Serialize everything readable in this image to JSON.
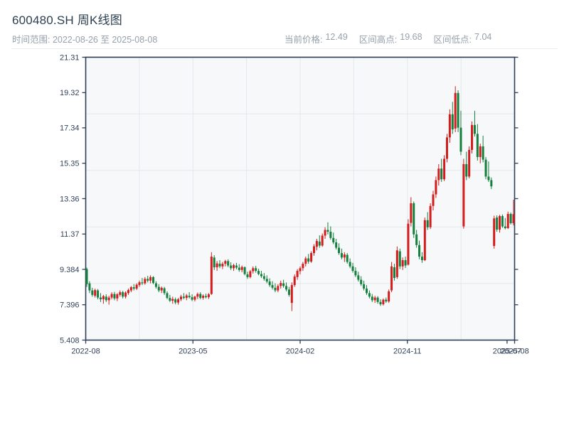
{
  "header": {
    "title": "600480.SH 周K线图",
    "subtitle": "时间范围: 2022-08-26 至 2025-08-08",
    "stats": [
      {
        "label": "当前价格:",
        "value": "12.49"
      },
      {
        "label": "区间高点:",
        "value": "19.68"
      },
      {
        "label": "区间低点:",
        "value": "7.04"
      }
    ]
  },
  "chart_data": {
    "type": "candlestick",
    "title": "600480.SH 周K线图",
    "symbol": "600480.SH",
    "period": "weekly",
    "date_range": [
      "2022-08-26",
      "2025-08-08"
    ],
    "current_price": 12.49,
    "range_high": 19.68,
    "range_low": 7.04,
    "ylim": [
      5.408,
      21.31
    ],
    "y_ticks": [
      "21.31",
      "19.32",
      "17.34",
      "15.35",
      "13.36",
      "11.37",
      "9.384",
      "7.396",
      "5.408"
    ],
    "x_ticks": [
      {
        "label": "2022-08",
        "week": 0
      },
      {
        "label": "2023-05",
        "week": 38.5
      },
      {
        "label": "2024-02",
        "week": 77
      },
      {
        "label": "2024-11",
        "week": 115.5
      },
      {
        "label": "2025-07",
        "week": 151.3
      },
      {
        "label": "2025-08",
        "week": 154
      }
    ],
    "grid": {
      "h_divisions": 5,
      "v_divisions": 8,
      "grid_on": true
    },
    "colors": {
      "up": "#d41c1c",
      "down": "#15803d",
      "axis": "#2e4057",
      "gridline": "#e4e7eb",
      "plot_bg": "#f7f8fa",
      "tick_label": "#33435a"
    },
    "candles_format": [
      "open",
      "high",
      "low",
      "close"
    ],
    "candles": [
      [
        9.4,
        9.48,
        8.4,
        8.55
      ],
      [
        8.6,
        8.72,
        8.05,
        8.2
      ],
      [
        8.2,
        8.35,
        7.85,
        7.95
      ],
      [
        7.9,
        8.3,
        7.8,
        8.22
      ],
      [
        8.2,
        8.28,
        7.7,
        7.8
      ],
      [
        7.8,
        8.05,
        7.55,
        7.7
      ],
      [
        7.7,
        7.95,
        7.45,
        7.88
      ],
      [
        7.85,
        7.98,
        7.55,
        7.65
      ],
      [
        7.65,
        7.9,
        7.4,
        7.8
      ],
      [
        7.8,
        8.1,
        7.7,
        8.0
      ],
      [
        8.0,
        8.12,
        7.65,
        7.75
      ],
      [
        7.75,
        8.05,
        7.6,
        7.98
      ],
      [
        7.95,
        8.2,
        7.85,
        8.1
      ],
      [
        8.1,
        8.18,
        7.75,
        7.85
      ],
      [
        7.85,
        8.15,
        7.75,
        8.08
      ],
      [
        8.05,
        8.3,
        7.95,
        8.22
      ],
      [
        8.2,
        8.45,
        8.1,
        8.38
      ],
      [
        8.38,
        8.55,
        8.2,
        8.3
      ],
      [
        8.3,
        8.6,
        8.22,
        8.52
      ],
      [
        8.5,
        8.75,
        8.4,
        8.66
      ],
      [
        8.65,
        8.9,
        8.5,
        8.6
      ],
      [
        8.6,
        8.95,
        8.52,
        8.85
      ],
      [
        8.85,
        9.02,
        8.65,
        8.75
      ],
      [
        8.75,
        9.05,
        8.6,
        8.95
      ],
      [
        8.95,
        9.0,
        8.55,
        8.62
      ],
      [
        8.6,
        8.72,
        8.3,
        8.4
      ],
      [
        8.4,
        8.55,
        8.1,
        8.2
      ],
      [
        8.2,
        8.42,
        8.05,
        8.35
      ],
      [
        8.32,
        8.4,
        7.95,
        8.05
      ],
      [
        8.05,
        8.15,
        7.7,
        7.78
      ],
      [
        7.78,
        7.95,
        7.55,
        7.62
      ],
      [
        7.62,
        7.85,
        7.45,
        7.72
      ],
      [
        7.7,
        7.8,
        7.42,
        7.52
      ],
      [
        7.52,
        7.78,
        7.4,
        7.7
      ],
      [
        7.7,
        7.95,
        7.6,
        7.85
      ],
      [
        7.85,
        8.05,
        7.7,
        7.78
      ],
      [
        7.78,
        8.0,
        7.65,
        7.92
      ],
      [
        7.9,
        8.1,
        7.75,
        7.82
      ],
      [
        7.82,
        7.98,
        7.6,
        7.68
      ],
      [
        7.68,
        7.9,
        7.58,
        7.85
      ],
      [
        7.85,
        8.08,
        7.72,
        8.0
      ],
      [
        8.0,
        8.1,
        7.7,
        7.78
      ],
      [
        7.78,
        7.98,
        7.68,
        7.9
      ],
      [
        7.88,
        8.02,
        7.75,
        7.82
      ],
      [
        7.82,
        8.05,
        7.72,
        7.98
      ],
      [
        8.0,
        10.35,
        7.95,
        10.1
      ],
      [
        10.05,
        10.18,
        9.35,
        9.5
      ],
      [
        9.5,
        9.85,
        9.3,
        9.72
      ],
      [
        9.7,
        9.9,
        9.45,
        9.55
      ],
      [
        9.55,
        9.8,
        9.4,
        9.7
      ],
      [
        9.7,
        9.92,
        9.55,
        9.85
      ],
      [
        9.85,
        9.95,
        9.5,
        9.6
      ],
      [
        9.6,
        9.78,
        9.35,
        9.45
      ],
      [
        9.45,
        9.7,
        9.3,
        9.62
      ],
      [
        9.6,
        9.75,
        9.38,
        9.48
      ],
      [
        9.48,
        9.68,
        9.25,
        9.35
      ],
      [
        9.35,
        9.6,
        9.22,
        9.52
      ],
      [
        9.5,
        9.55,
        9.05,
        9.12
      ],
      [
        9.1,
        9.25,
        8.85,
        8.95
      ],
      [
        8.95,
        9.35,
        8.88,
        9.28
      ],
      [
        9.28,
        9.55,
        9.15,
        9.45
      ],
      [
        9.45,
        9.58,
        9.2,
        9.3
      ],
      [
        9.3,
        9.42,
        9.05,
        9.12
      ],
      [
        9.12,
        9.3,
        8.9,
        9.0
      ],
      [
        9.0,
        9.18,
        8.75,
        8.85
      ],
      [
        8.85,
        9.05,
        8.6,
        8.7
      ],
      [
        8.7,
        8.88,
        8.4,
        8.5
      ],
      [
        8.5,
        8.72,
        8.25,
        8.35
      ],
      [
        8.35,
        8.6,
        8.1,
        8.2
      ],
      [
        8.2,
        8.55,
        8.1,
        8.45
      ],
      [
        8.45,
        8.75,
        8.3,
        8.62
      ],
      [
        8.6,
        8.8,
        8.35,
        8.45
      ],
      [
        8.45,
        8.65,
        8.15,
        8.25
      ],
      [
        8.25,
        8.4,
        7.85,
        7.95
      ],
      [
        7.5,
        8.65,
        7.04,
        8.5
      ],
      [
        8.5,
        9.1,
        8.4,
        8.98
      ],
      [
        8.95,
        9.4,
        8.8,
        9.3
      ],
      [
        9.28,
        9.55,
        9.1,
        9.45
      ],
      [
        9.45,
        9.8,
        9.3,
        9.7
      ],
      [
        9.7,
        10.1,
        9.55,
        10.0
      ],
      [
        10.0,
        10.25,
        9.7,
        9.82
      ],
      [
        9.82,
        10.4,
        9.75,
        10.3
      ],
      [
        10.3,
        10.8,
        10.15,
        10.68
      ],
      [
        10.65,
        11.1,
        10.45,
        10.98
      ],
      [
        10.95,
        11.3,
        10.6,
        10.72
      ],
      [
        10.72,
        11.4,
        10.65,
        11.28
      ],
      [
        11.28,
        11.75,
        11.1,
        11.6
      ],
      [
        11.6,
        12.03,
        11.35,
        11.5
      ],
      [
        11.5,
        11.8,
        11.05,
        11.15
      ],
      [
        11.15,
        11.45,
        10.8,
        10.9
      ],
      [
        10.9,
        11.1,
        10.5,
        10.6
      ],
      [
        10.6,
        10.85,
        10.2,
        10.3
      ],
      [
        10.3,
        10.55,
        9.95,
        10.05
      ],
      [
        10.05,
        10.35,
        9.8,
        10.22
      ],
      [
        10.2,
        10.3,
        9.7,
        9.8
      ],
      [
        9.8,
        10.0,
        9.45,
        9.55
      ],
      [
        9.55,
        9.75,
        9.2,
        9.3
      ],
      [
        9.3,
        9.5,
        8.95,
        9.05
      ],
      [
        9.05,
        9.25,
        8.7,
        8.8
      ],
      [
        8.8,
        9.0,
        8.45,
        8.55
      ],
      [
        8.55,
        8.75,
        8.2,
        8.3
      ],
      [
        8.3,
        8.5,
        7.95,
        8.05
      ],
      [
        8.05,
        8.2,
        7.75,
        7.85
      ],
      [
        7.85,
        8.0,
        7.55,
        7.65
      ],
      [
        7.65,
        7.9,
        7.5,
        7.8
      ],
      [
        7.8,
        7.88,
        7.45,
        7.55
      ],
      [
        7.55,
        7.7,
        7.33,
        7.42
      ],
      [
        7.42,
        7.75,
        7.35,
        7.68
      ],
      [
        7.68,
        7.8,
        7.5,
        7.58
      ],
      [
        7.58,
        8.25,
        7.5,
        8.15
      ],
      [
        8.2,
        9.8,
        8.1,
        9.55
      ],
      [
        9.5,
        9.7,
        8.75,
        8.9
      ],
      [
        8.95,
        10.67,
        8.85,
        10.45
      ],
      [
        10.4,
        10.55,
        9.4,
        9.55
      ],
      [
        9.55,
        10.05,
        9.35,
        9.9
      ],
      [
        9.9,
        10.1,
        9.46,
        9.6
      ],
      [
        9.65,
        12.2,
        9.6,
        11.95
      ],
      [
        12.0,
        13.44,
        11.8,
        13.1
      ],
      [
        13.1,
        13.2,
        11.15,
        11.35
      ],
      [
        11.35,
        11.6,
        10.6,
        10.75
      ],
      [
        10.75,
        11.0,
        9.95,
        10.1
      ],
      [
        10.1,
        10.35,
        9.75,
        9.9
      ],
      [
        9.9,
        12.3,
        9.85,
        12.15
      ],
      [
        12.15,
        12.6,
        11.6,
        11.75
      ],
      [
        11.75,
        13.1,
        11.65,
        12.95
      ],
      [
        12.95,
        13.8,
        12.7,
        13.6
      ],
      [
        13.6,
        14.6,
        13.4,
        14.4
      ],
      [
        14.4,
        15.3,
        14.1,
        15.05
      ],
      [
        15.05,
        15.6,
        14.3,
        14.45
      ],
      [
        14.45,
        15.8,
        14.35,
        15.6
      ],
      [
        15.6,
        17.0,
        15.4,
        16.8
      ],
      [
        16.8,
        18.38,
        16.5,
        18.1
      ],
      [
        18.1,
        18.8,
        17.0,
        17.25
      ],
      [
        17.3,
        19.68,
        17.1,
        19.3
      ],
      [
        19.3,
        19.45,
        17.1,
        17.35
      ],
      [
        17.35,
        18.3,
        15.8,
        16.0
      ],
      [
        11.8,
        15.6,
        11.67,
        15.3
      ],
      [
        15.3,
        16.0,
        14.4,
        14.6
      ],
      [
        14.6,
        16.3,
        14.5,
        16.1
      ],
      [
        16.1,
        17.7,
        15.9,
        17.5
      ],
      [
        17.5,
        18.3,
        16.85,
        17.0
      ],
      [
        17.0,
        17.55,
        15.5,
        15.7
      ],
      [
        15.7,
        16.45,
        15.35,
        16.3
      ],
      [
        16.3,
        16.9,
        15.4,
        15.55
      ],
      [
        15.55,
        15.7,
        14.45,
        14.6
      ],
      [
        14.6,
        15.45,
        14.3,
        14.4
      ],
      [
        14.4,
        14.55,
        13.9,
        14.05
      ],
      [
        10.7,
        12.4,
        10.55,
        12.25
      ],
      [
        12.3,
        12.42,
        11.5,
        11.62
      ],
      [
        11.62,
        12.45,
        11.45,
        12.38
      ],
      [
        12.38,
        12.47,
        11.72,
        11.8
      ],
      [
        11.8,
        12.27,
        11.63,
        11.7
      ],
      [
        11.7,
        12.63,
        11.65,
        12.5
      ],
      [
        12.5,
        12.58,
        11.9,
        11.98
      ],
      [
        11.98,
        13.3,
        11.85,
        12.49
      ]
    ]
  }
}
